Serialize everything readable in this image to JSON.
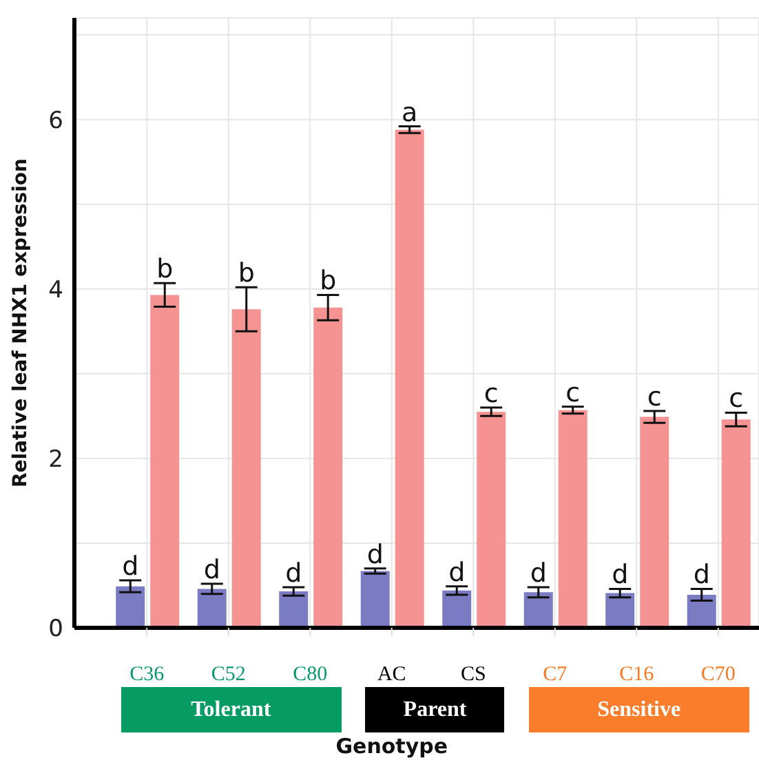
{
  "chart_data": {
    "type": "bar",
    "xlabel": "Genotype",
    "ylabel": "Relative leaf NHX1 expression",
    "categories": [
      "C36",
      "C52",
      "C80",
      "AC",
      "CS",
      "C7",
      "C16",
      "C70"
    ],
    "series": [
      {
        "color": "#7b7bc4",
        "values": [
          0.49,
          0.46,
          0.43,
          0.67,
          0.44,
          0.42,
          0.41,
          0.39
        ],
        "errors": [
          0.07,
          0.06,
          0.05,
          0.03,
          0.05,
          0.06,
          0.05,
          0.07
        ]
      },
      {
        "color": "#f59393",
        "values": [
          3.93,
          3.76,
          3.78,
          5.88,
          2.55,
          2.57,
          2.49,
          2.46
        ],
        "errors": [
          0.14,
          0.26,
          0.15,
          0.04,
          0.05,
          0.04,
          0.07,
          0.08
        ]
      }
    ],
    "ylim": [
      0,
      7.2
    ],
    "yticks": [
      0,
      {
        "value": 1,
        "label": null
      },
      2,
      {
        "value": 3,
        "label": null
      },
      4,
      {
        "value": 5,
        "label": null
      },
      6,
      {
        "value": 7,
        "label": null
      }
    ],
    "grid": true,
    "legend": false,
    "annotations": [
      {
        "text": "d",
        "x": "C36",
        "y": 0.56
      },
      {
        "text": "b",
        "x": "C36",
        "y": 4.07
      },
      {
        "text": "d",
        "x": "C52",
        "y": 0.52
      },
      {
        "text": "b",
        "x": "C52",
        "y": 4.02
      },
      {
        "text": "d",
        "x": "C80",
        "y": 0.48
      },
      {
        "text": "b",
        "x": "C80",
        "y": 3.93
      },
      {
        "text": "d",
        "x": "AC",
        "y": 0.7
      },
      {
        "text": "a",
        "x": "AC",
        "y": 5.92
      },
      {
        "text": "d",
        "x": "CS",
        "y": 0.49
      },
      {
        "text": "c",
        "x": "CS",
        "y": 2.6
      },
      {
        "text": "d",
        "x": "C7",
        "y": 0.48
      },
      {
        "text": "c",
        "x": "C7",
        "y": 2.61
      },
      {
        "text": "d",
        "x": "C16",
        "y": 0.46
      },
      {
        "text": "c",
        "x": "C16",
        "y": 2.56
      },
      {
        "text": "d",
        "x": "C70",
        "y": 0.46
      },
      {
        "text": "c",
        "x": "C70",
        "y": 2.54
      },
      "Tolerant",
      "Parent",
      "Sensitive"
    ]
  }
}
